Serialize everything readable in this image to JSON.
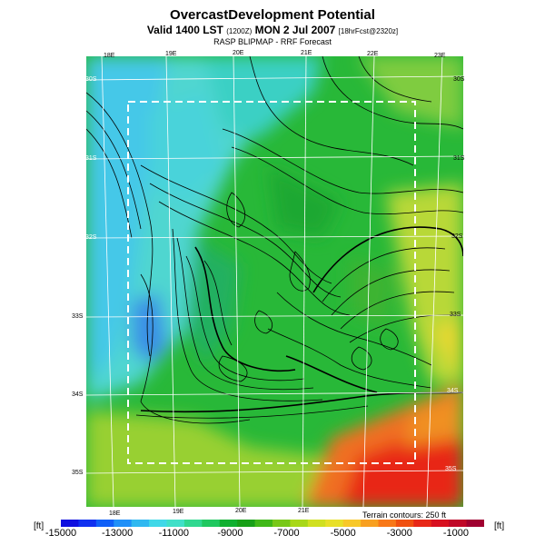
{
  "header": {
    "title": "OvercastDevelopment Potential",
    "valid_main": "Valid 1400 LST",
    "valid_small": "(1200Z)",
    "valid_date": "MON 2 Jul 2007",
    "valid_fcst": "[18hrFcst@2320z]",
    "subtitle": "RASP BLIPMAP - RRF Forecast"
  },
  "map": {
    "lon_top": [
      "18E",
      "19E",
      "20E",
      "21E",
      "22E",
      "23E"
    ],
    "lon_bottom": [
      "18E",
      "19E",
      "20E",
      "21E"
    ],
    "lat_left": [
      "30S",
      "31S",
      "32S",
      "33S",
      "34S",
      "35S"
    ],
    "lat_right": [
      "30S",
      "31S",
      "32S",
      "33S",
      "34S",
      "35S"
    ],
    "terrain_note": "Terrain contours: 250 ft",
    "colors": {
      "ocean_light": "#5fd9e6",
      "ocean_blue": "#3c8fe6",
      "land_green": "#25b83a",
      "dry_yellow": "#c8e048",
      "hot_red": "#e8281e",
      "contour": "#000000",
      "grid": "#ffffff"
    }
  },
  "colorbar": {
    "unit_left": "[ft]",
    "unit_right": "[ft]",
    "ticks": [
      "-15000",
      "-13000",
      "-11000",
      "-9000",
      "-7000",
      "-5000",
      "-3000",
      "-1000"
    ],
    "range": [
      -15000,
      0
    ],
    "colors": [
      "#1010e0",
      "#1030f0",
      "#1060f8",
      "#2090f8",
      "#30b8f0",
      "#40d8e8",
      "#40e0c8",
      "#30d890",
      "#20c860",
      "#10b030",
      "#18a018",
      "#40b818",
      "#78c818",
      "#a8d818",
      "#d0e020",
      "#e8e028",
      "#f8c828",
      "#f8a020",
      "#f87818",
      "#f05010",
      "#e82818",
      "#d81020",
      "#c00828",
      "#a00030"
    ]
  }
}
